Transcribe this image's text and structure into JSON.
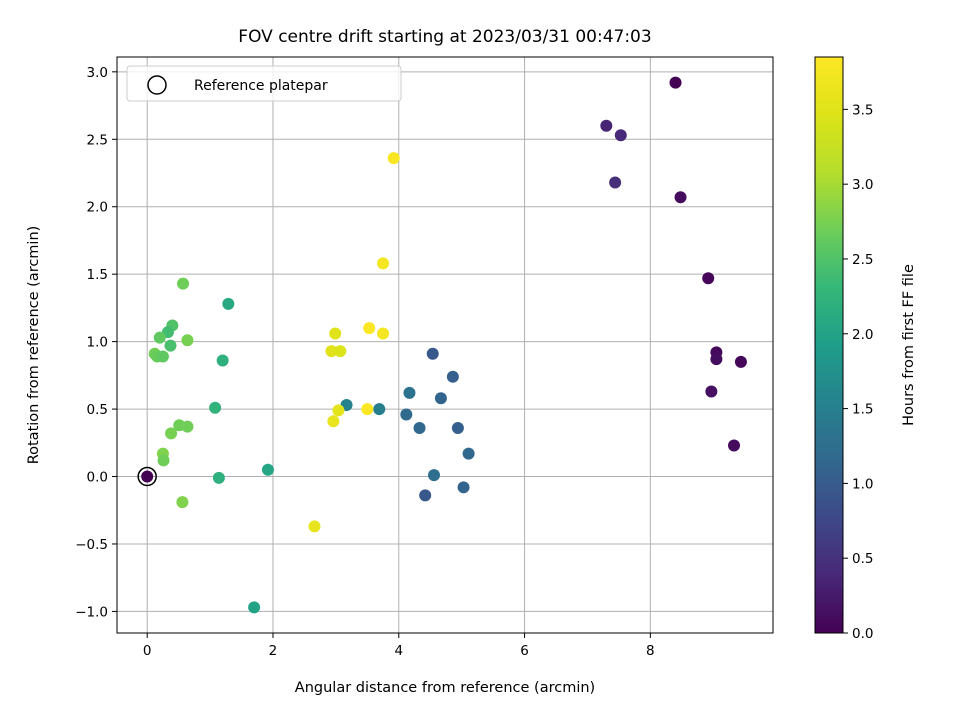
{
  "chart_data": {
    "type": "scatter",
    "title": "FOV centre drift starting at 2023/03/31 00:47:03",
    "xlabel": "Angular distance from reference (arcmin)",
    "ylabel": "Rotation from reference (arcmin)",
    "xlim": [
      -0.48,
      9.95
    ],
    "ylim": [
      -1.16,
      3.11
    ],
    "xticks": [
      0,
      2,
      4,
      6,
      8
    ],
    "xtick_labels": [
      "0",
      "2",
      "4",
      "6",
      "8"
    ],
    "yticks": [
      -1.0,
      -0.5,
      0.0,
      0.5,
      1.0,
      1.5,
      2.0,
      2.5,
      3.0
    ],
    "ytick_labels": [
      "−1.0",
      "−0.5",
      "0.0",
      "0.5",
      "1.0",
      "1.5",
      "2.0",
      "2.5",
      "3.0"
    ],
    "grid": true,
    "legend": {
      "placement": "top-left",
      "entries": [
        {
          "label": "Reference platepar",
          "marker": "open-circle",
          "color": "#000000"
        }
      ]
    },
    "reference_point": {
      "x": 0.0,
      "y": 0.0
    },
    "colorbar": {
      "label": "Hours from first FF file",
      "colormap": "viridis",
      "range": [
        0.0,
        3.85
      ],
      "ticks": [
        0.0,
        0.5,
        1.0,
        1.5,
        2.0,
        2.5,
        3.0,
        3.5
      ],
      "tick_labels": [
        "0.0",
        "0.5",
        "1.0",
        "1.5",
        "2.0",
        "2.5",
        "3.0",
        "3.5"
      ]
    },
    "points": [
      {
        "x": 8.4,
        "y": 2.92,
        "c": 0.0
      },
      {
        "x": 8.48,
        "y": 2.07,
        "c": 0.1
      },
      {
        "x": 8.92,
        "y": 1.47,
        "c": 0.05
      },
      {
        "x": 9.05,
        "y": 0.92,
        "c": 0.08
      },
      {
        "x": 9.05,
        "y": 0.87,
        "c": 0.12
      },
      {
        "x": 9.44,
        "y": 0.85,
        "c": 0.05
      },
      {
        "x": 8.97,
        "y": 0.63,
        "c": 0.15
      },
      {
        "x": 9.33,
        "y": 0.23,
        "c": 0.1
      },
      {
        "x": 7.3,
        "y": 2.6,
        "c": 0.35
      },
      {
        "x": 7.53,
        "y": 2.53,
        "c": 0.4
      },
      {
        "x": 7.44,
        "y": 2.18,
        "c": 0.45
      },
      {
        "x": 4.54,
        "y": 0.91,
        "c": 0.95
      },
      {
        "x": 4.86,
        "y": 0.74,
        "c": 1.05
      },
      {
        "x": 4.17,
        "y": 0.62,
        "c": 1.3
      },
      {
        "x": 4.67,
        "y": 0.58,
        "c": 1.1
      },
      {
        "x": 4.12,
        "y": 0.46,
        "c": 1.2
      },
      {
        "x": 4.33,
        "y": 0.36,
        "c": 1.15
      },
      {
        "x": 4.94,
        "y": 0.36,
        "c": 1.05
      },
      {
        "x": 5.11,
        "y": 0.17,
        "c": 1.15
      },
      {
        "x": 4.56,
        "y": 0.01,
        "c": 1.25
      },
      {
        "x": 5.03,
        "y": -0.08,
        "c": 1.1
      },
      {
        "x": 4.42,
        "y": -0.14,
        "c": 0.95
      },
      {
        "x": 3.17,
        "y": 0.53,
        "c": 1.55
      },
      {
        "x": 3.69,
        "y": 0.5,
        "c": 1.5
      },
      {
        "x": 1.92,
        "y": 0.05,
        "c": 2.05
      },
      {
        "x": 1.7,
        "y": -0.97,
        "c": 2.0
      },
      {
        "x": 1.29,
        "y": 1.28,
        "c": 2.1
      },
      {
        "x": 1.2,
        "y": 0.86,
        "c": 2.2
      },
      {
        "x": 1.08,
        "y": 0.51,
        "c": 2.25
      },
      {
        "x": 1.14,
        "y": -0.01,
        "c": 2.2
      },
      {
        "x": 0.57,
        "y": 1.43,
        "c": 2.7
      },
      {
        "x": 0.4,
        "y": 1.12,
        "c": 2.5
      },
      {
        "x": 0.33,
        "y": 1.07,
        "c": 2.4
      },
      {
        "x": 0.2,
        "y": 1.03,
        "c": 2.6
      },
      {
        "x": 0.64,
        "y": 1.01,
        "c": 2.75
      },
      {
        "x": 0.37,
        "y": 0.97,
        "c": 2.45
      },
      {
        "x": 0.12,
        "y": 0.91,
        "c": 2.7
      },
      {
        "x": 0.16,
        "y": 0.89,
        "c": 2.65
      },
      {
        "x": 0.25,
        "y": 0.89,
        "c": 2.6
      },
      {
        "x": 0.51,
        "y": 0.38,
        "c": 2.7
      },
      {
        "x": 0.64,
        "y": 0.37,
        "c": 2.7
      },
      {
        "x": 0.38,
        "y": 0.32,
        "c": 2.75
      },
      {
        "x": 0.25,
        "y": 0.17,
        "c": 2.8
      },
      {
        "x": 0.26,
        "y": 0.12,
        "c": 2.7
      },
      {
        "x": 0.56,
        "y": -0.19,
        "c": 2.8
      },
      {
        "x": 0.0,
        "y": 0.0,
        "c": 0.0
      },
      {
        "x": 3.92,
        "y": 2.36,
        "c": 3.8
      },
      {
        "x": 3.75,
        "y": 1.58,
        "c": 3.75
      },
      {
        "x": 3.53,
        "y": 1.1,
        "c": 3.85
      },
      {
        "x": 3.75,
        "y": 1.06,
        "c": 3.75
      },
      {
        "x": 2.99,
        "y": 1.06,
        "c": 3.5
      },
      {
        "x": 2.93,
        "y": 0.93,
        "c": 3.5
      },
      {
        "x": 3.07,
        "y": 0.93,
        "c": 3.45
      },
      {
        "x": 3.04,
        "y": 0.49,
        "c": 3.55
      },
      {
        "x": 3.5,
        "y": 0.5,
        "c": 3.85
      },
      {
        "x": 2.96,
        "y": 0.41,
        "c": 3.6
      },
      {
        "x": 2.66,
        "y": -0.37,
        "c": 3.6
      }
    ]
  }
}
